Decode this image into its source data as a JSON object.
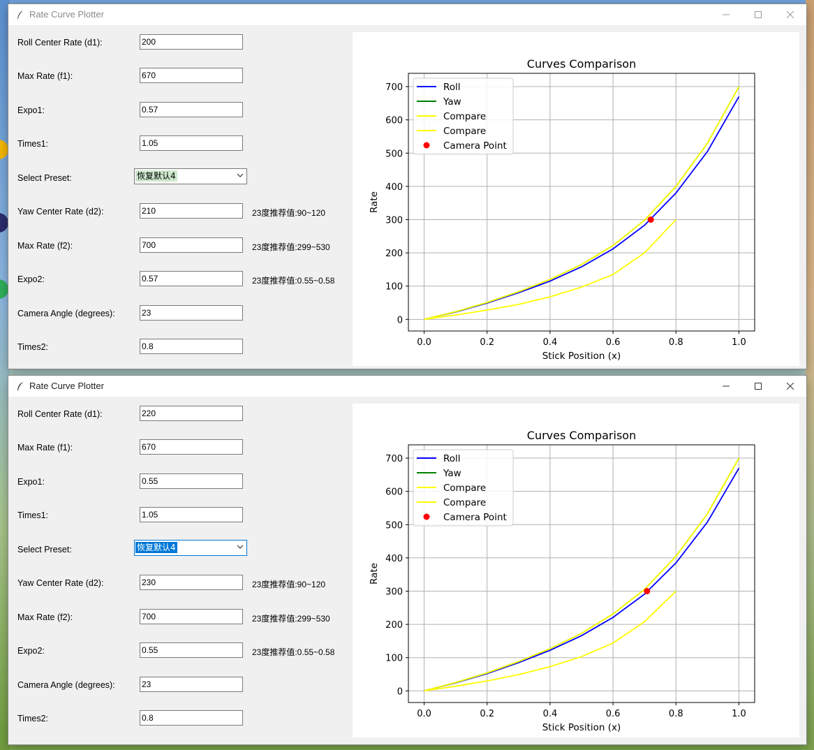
{
  "windows": [
    {
      "title": "Rate Curve Plotter",
      "active": false,
      "fields": {
        "roll_center_rate": {
          "label": "Roll Center Rate (d1):",
          "value": "200"
        },
        "max_rate_f1": {
          "label": "Max Rate (f1):",
          "value": "670"
        },
        "expo1": {
          "label": "Expo1:",
          "value": "0.57"
        },
        "times1": {
          "label": "Times1:",
          "value": "1.05"
        },
        "preset": {
          "label": "Select Preset:",
          "value": "恢复默认4"
        },
        "yaw_center_rate": {
          "label": "Yaw Center Rate (d2):",
          "value": "210",
          "hint": "23度推荐值:90~120"
        },
        "max_rate_f2": {
          "label": "Max Rate (f2):",
          "value": "700",
          "hint": "23度推荐值:299~530"
        },
        "expo2": {
          "label": "Expo2:",
          "value": "0.57",
          "hint": "23度推荐值:0.55~0.58"
        },
        "camera_angle": {
          "label": "Camera Angle (degrees):",
          "value": "23"
        },
        "times2": {
          "label": "Times2:",
          "value": "0.8"
        }
      },
      "chart_data": {
        "type": "line",
        "title": "Curves Comparison",
        "xlabel": "Stick Position (x)",
        "ylabel": "Rate",
        "xlim": [
          -0.05,
          1.05
        ],
        "ylim": [
          -35,
          740
        ],
        "xticks": [
          "0.0",
          "0.2",
          "0.4",
          "0.6",
          "0.8",
          "1.0"
        ],
        "yticks": [
          "0",
          "100",
          "200",
          "300",
          "400",
          "500",
          "600",
          "700"
        ],
        "grid": true,
        "legend_position": "top-left",
        "series": [
          {
            "name": "Roll",
            "color": "#0000ff",
            "x": [
              0,
              0.1,
              0.2,
              0.3,
              0.4,
              0.5,
              0.6,
              0.7,
              0.8,
              0.9,
              1.0
            ],
            "y": [
              0,
              22,
              49,
              80,
              115,
              158,
              212,
              283,
              380,
              505,
              670
            ]
          },
          {
            "name": "Yaw",
            "color": "#008000",
            "x": [
              0,
              0.1,
              0.2,
              0.3,
              0.4,
              0.5,
              0.6,
              0.7,
              0.8,
              0.9,
              1.0
            ],
            "y": [
              0,
              23,
              51,
              83,
              120,
              165,
              222,
              298,
              400,
              530,
              700
            ]
          },
          {
            "name": "Compare",
            "color": "#ffff00",
            "x": [
              0,
              0.1,
              0.2,
              0.3,
              0.4,
              0.5,
              0.6,
              0.7,
              0.8,
              0.9,
              1.0
            ],
            "y": [
              0,
              23,
              51,
              83,
              120,
              165,
              222,
              298,
              400,
              530,
              700
            ]
          },
          {
            "name": "Compare",
            "color": "#ffff00",
            "x": [
              0,
              0.1,
              0.2,
              0.3,
              0.4,
              0.5,
              0.6,
              0.7,
              0.8
            ],
            "y": [
              0,
              13,
              28,
              45,
              68,
              97,
              135,
              200,
              300
            ]
          },
          {
            "name": "Camera Point",
            "color": "#ff0000",
            "marker": "dot",
            "x": [
              0.72
            ],
            "y": [
              300
            ]
          }
        ]
      }
    },
    {
      "title": "Rate Curve Plotter",
      "active": true,
      "fields": {
        "roll_center_rate": {
          "label": "Roll Center Rate (d1):",
          "value": "220"
        },
        "max_rate_f1": {
          "label": "Max Rate (f1):",
          "value": "670"
        },
        "expo1": {
          "label": "Expo1:",
          "value": "0.55"
        },
        "times1": {
          "label": "Times1:",
          "value": "1.05"
        },
        "preset": {
          "label": "Select Preset:",
          "value": "恢复默认4"
        },
        "yaw_center_rate": {
          "label": "Yaw Center Rate (d2):",
          "value": "230",
          "hint": "23度推荐值:90~120"
        },
        "max_rate_f2": {
          "label": "Max Rate (f2):",
          "value": "700",
          "hint": "23度推荐值:299~530"
        },
        "expo2": {
          "label": "Expo2:",
          "value": "0.55",
          "hint": "23度推荐值:0.55~0.58"
        },
        "camera_angle": {
          "label": "Camera Angle (degrees):",
          "value": "23"
        },
        "times2": {
          "label": "Times2:",
          "value": "0.8"
        }
      },
      "chart_data": {
        "type": "line",
        "title": "Curves Comparison",
        "xlabel": "Stick Position (x)",
        "ylabel": "Rate",
        "xlim": [
          -0.05,
          1.05
        ],
        "ylim": [
          -35,
          740
        ],
        "xticks": [
          "0.0",
          "0.2",
          "0.4",
          "0.6",
          "0.8",
          "1.0"
        ],
        "yticks": [
          "0",
          "100",
          "200",
          "300",
          "400",
          "500",
          "600",
          "700"
        ],
        "grid": true,
        "legend_position": "top-left",
        "series": [
          {
            "name": "Roll",
            "color": "#0000ff",
            "x": [
              0,
              0.1,
              0.2,
              0.3,
              0.4,
              0.5,
              0.6,
              0.7,
              0.8,
              0.9,
              1.0
            ],
            "y": [
              0,
              24,
              52,
              85,
              122,
              166,
              221,
              291,
              385,
              508,
              670
            ]
          },
          {
            "name": "Yaw",
            "color": "#008000",
            "x": [
              0,
              0.1,
              0.2,
              0.3,
              0.4,
              0.5,
              0.6,
              0.7,
              0.8,
              0.9,
              1.0
            ],
            "y": [
              0,
              25,
              54,
              88,
              127,
              173,
              231,
              305,
              405,
              533,
              700
            ]
          },
          {
            "name": "Compare",
            "color": "#ffff00",
            "x": [
              0,
              0.1,
              0.2,
              0.3,
              0.4,
              0.5,
              0.6,
              0.7,
              0.8,
              0.9,
              1.0
            ],
            "y": [
              0,
              25,
              54,
              88,
              127,
              173,
              231,
              305,
              405,
              533,
              700
            ]
          },
          {
            "name": "Compare",
            "color": "#ffff00",
            "x": [
              0,
              0.1,
              0.2,
              0.3,
              0.4,
              0.5,
              0.6,
              0.7,
              0.8
            ],
            "y": [
              0,
              14,
              30,
              49,
              73,
              103,
              144,
              208,
              300
            ]
          },
          {
            "name": "Camera Point",
            "color": "#ff0000",
            "marker": "dot",
            "x": [
              0.708
            ],
            "y": [
              300
            ]
          }
        ]
      }
    }
  ]
}
